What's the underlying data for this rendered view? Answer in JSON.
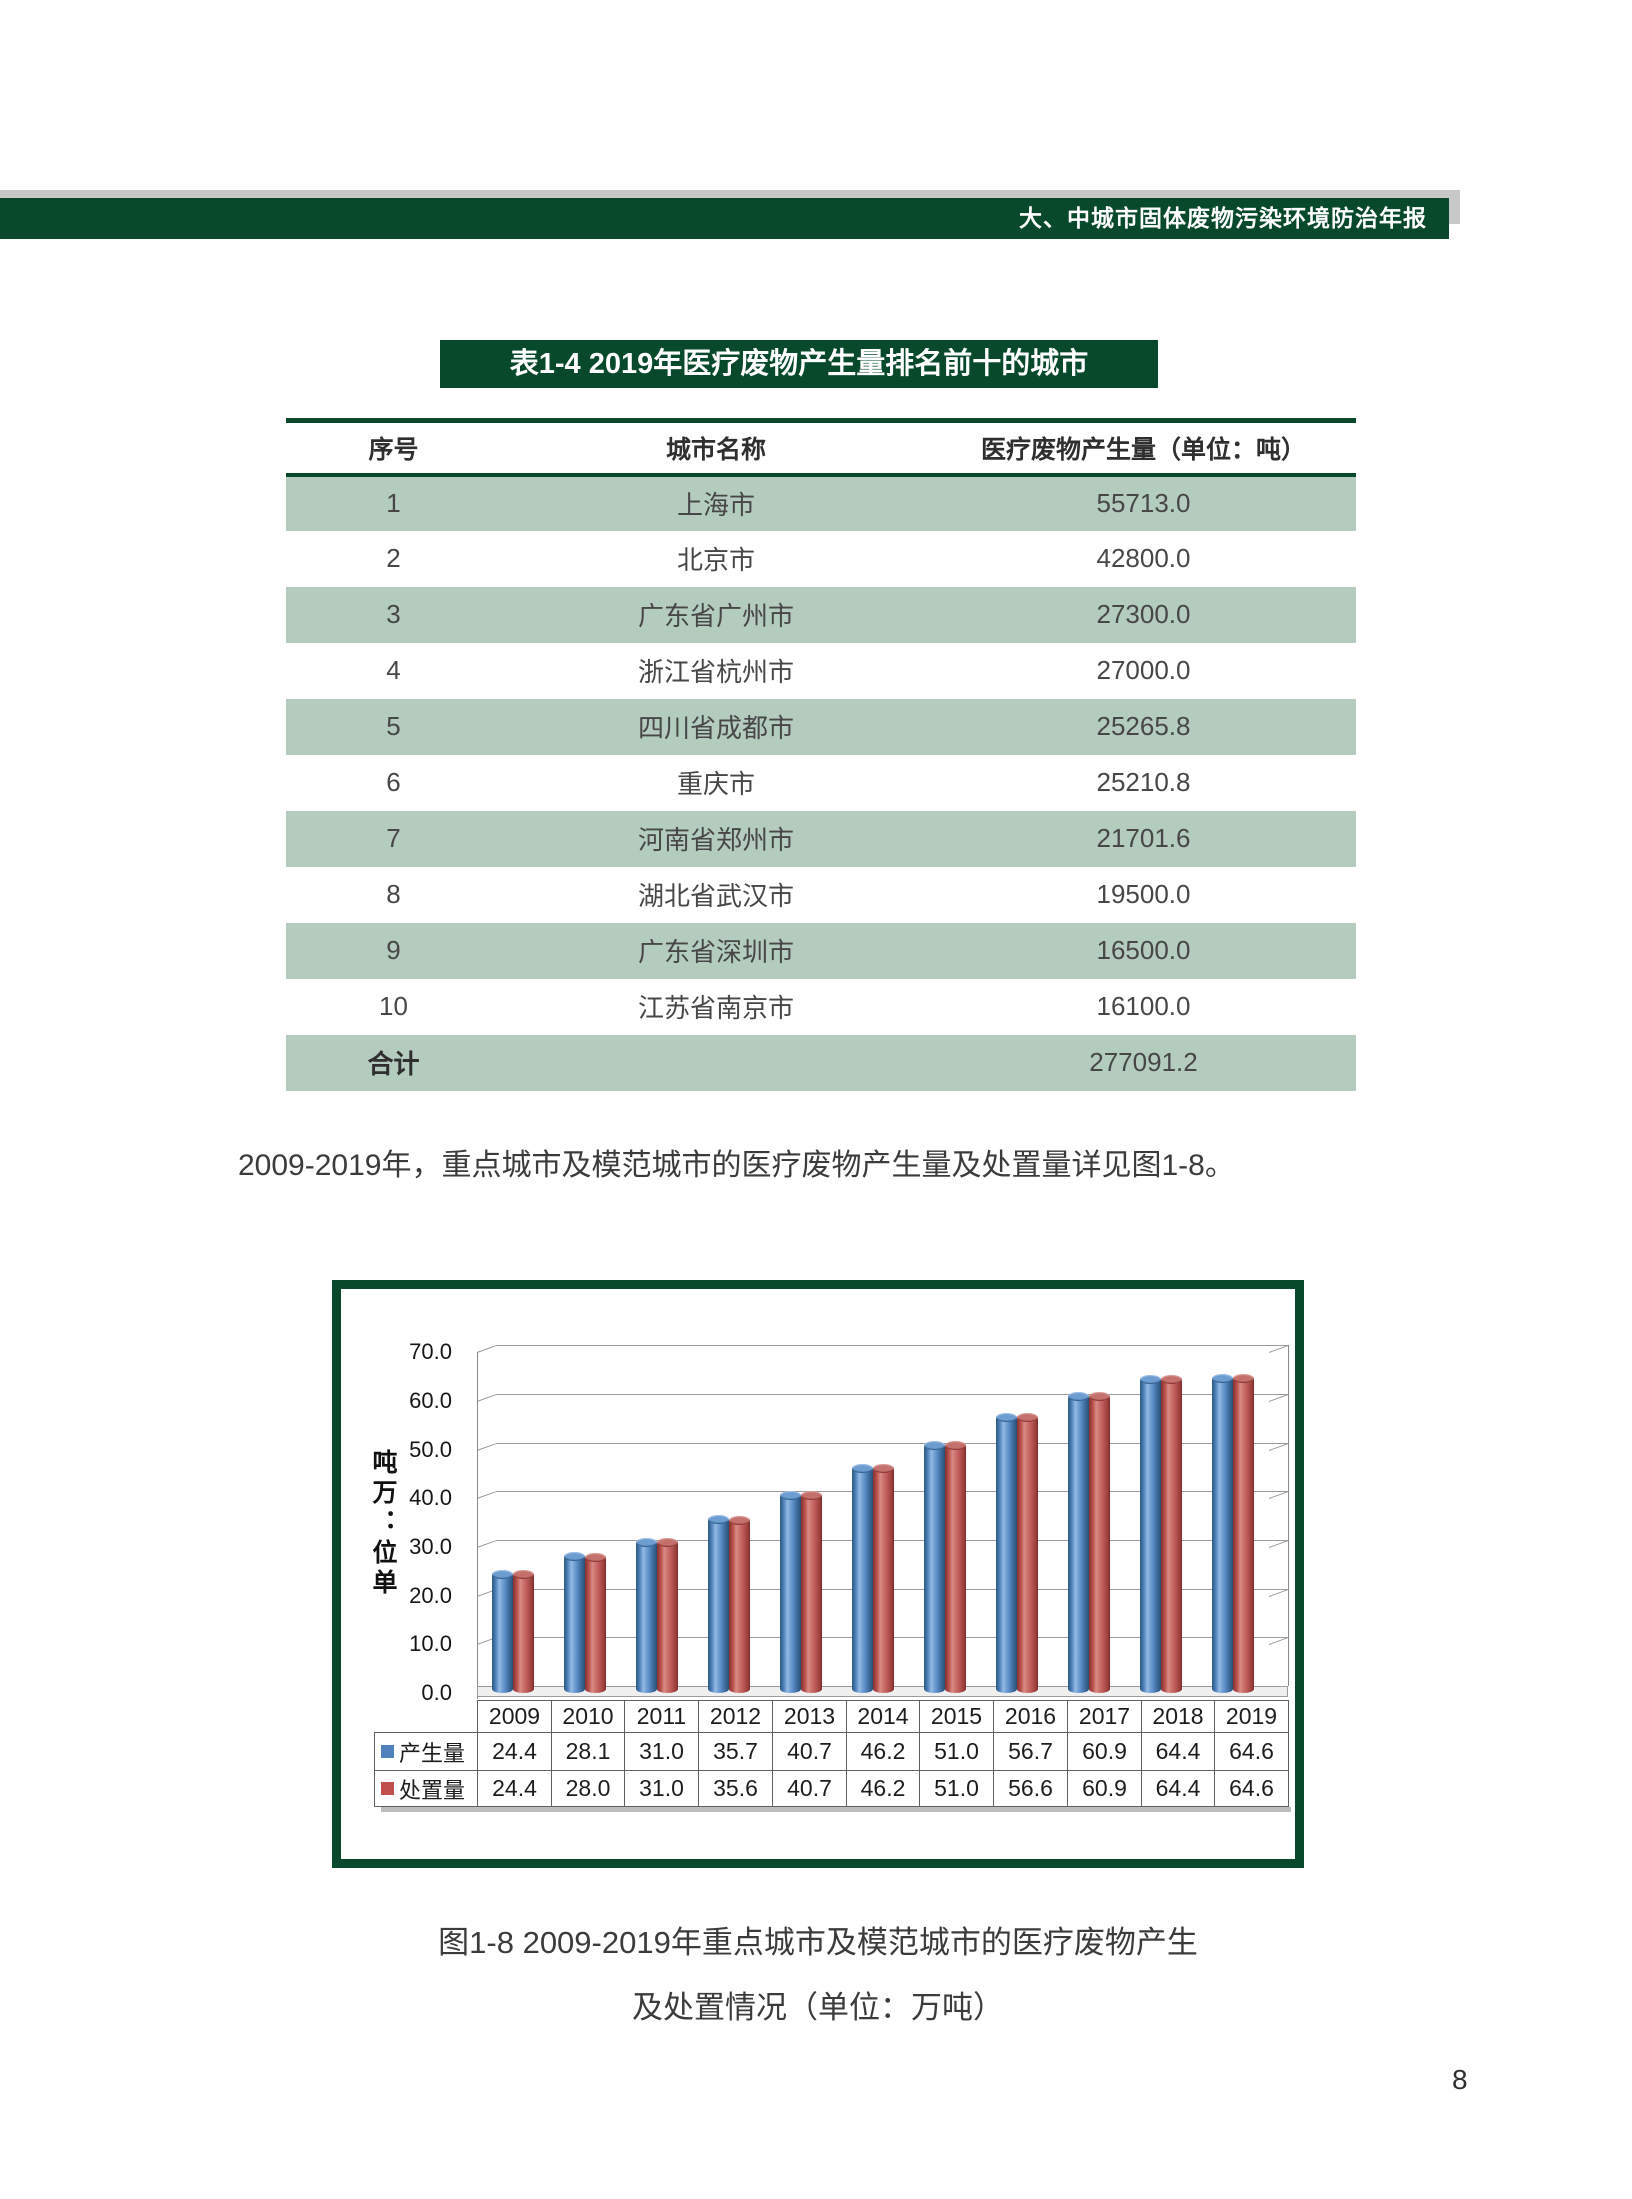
{
  "page": {
    "number": "8"
  },
  "header": {
    "title": "大、中城市固体废物污染环境防治年报"
  },
  "colors": {
    "dark_green": "#07492a",
    "row_green": "#b3ccbe",
    "header_gray": "#c8c8c8",
    "bar_blue": "#4f81bd",
    "bar_red": "#c0504d"
  },
  "table": {
    "title": "表1-4 2019年医疗废物产生量排名前十的城市",
    "columns": [
      "序号",
      "城市名称",
      "医疗废物产生量（单位：吨）"
    ],
    "rows": [
      {
        "rank": "1",
        "city": "上海市",
        "value": "55713.0"
      },
      {
        "rank": "2",
        "city": "北京市",
        "value": "42800.0"
      },
      {
        "rank": "3",
        "city": "广东省广州市",
        "value": "27300.0"
      },
      {
        "rank": "4",
        "city": "浙江省杭州市",
        "value": "27000.0"
      },
      {
        "rank": "5",
        "city": "四川省成都市",
        "value": "25265.8"
      },
      {
        "rank": "6",
        "city": "重庆市",
        "value": "25210.8"
      },
      {
        "rank": "7",
        "city": "河南省郑州市",
        "value": "21701.6"
      },
      {
        "rank": "8",
        "city": "湖北省武汉市",
        "value": "19500.0"
      },
      {
        "rank": "9",
        "city": "广东省深圳市",
        "value": "16500.0"
      },
      {
        "rank": "10",
        "city": "江苏省南京市",
        "value": "16100.0"
      }
    ],
    "total": {
      "label": "合计",
      "value": "277091.2"
    }
  },
  "paragraph": {
    "text": "2009-2019年，重点城市及模范城市的医疗废物产生量及处置量详见图1-8。"
  },
  "figure": {
    "caption_line1": "图1-8 2009-2019年重点城市及模范城市的医疗废物产生",
    "caption_line2": "及处置情况（单位：万吨）"
  },
  "chart_data": {
    "type": "bar",
    "style": "3d-cylinder",
    "categories": [
      "2009",
      "2010",
      "2011",
      "2012",
      "2013",
      "2014",
      "2015",
      "2016",
      "2017",
      "2018",
      "2019"
    ],
    "series": [
      {
        "name": "产生量",
        "color": "#4f81bd",
        "values": [
          24.4,
          28.1,
          31.0,
          35.7,
          40.7,
          46.2,
          51.0,
          56.7,
          60.9,
          64.4,
          64.6
        ]
      },
      {
        "name": "处置量",
        "color": "#c0504d",
        "values": [
          24.4,
          28.0,
          31.0,
          35.6,
          40.7,
          46.2,
          51.0,
          56.6,
          60.9,
          64.4,
          64.6
        ]
      }
    ],
    "ylabel": "单位：万吨",
    "ylim": [
      0,
      70
    ],
    "ytick_step": 10,
    "grid": true,
    "legend_position": "left-of-data-table"
  }
}
